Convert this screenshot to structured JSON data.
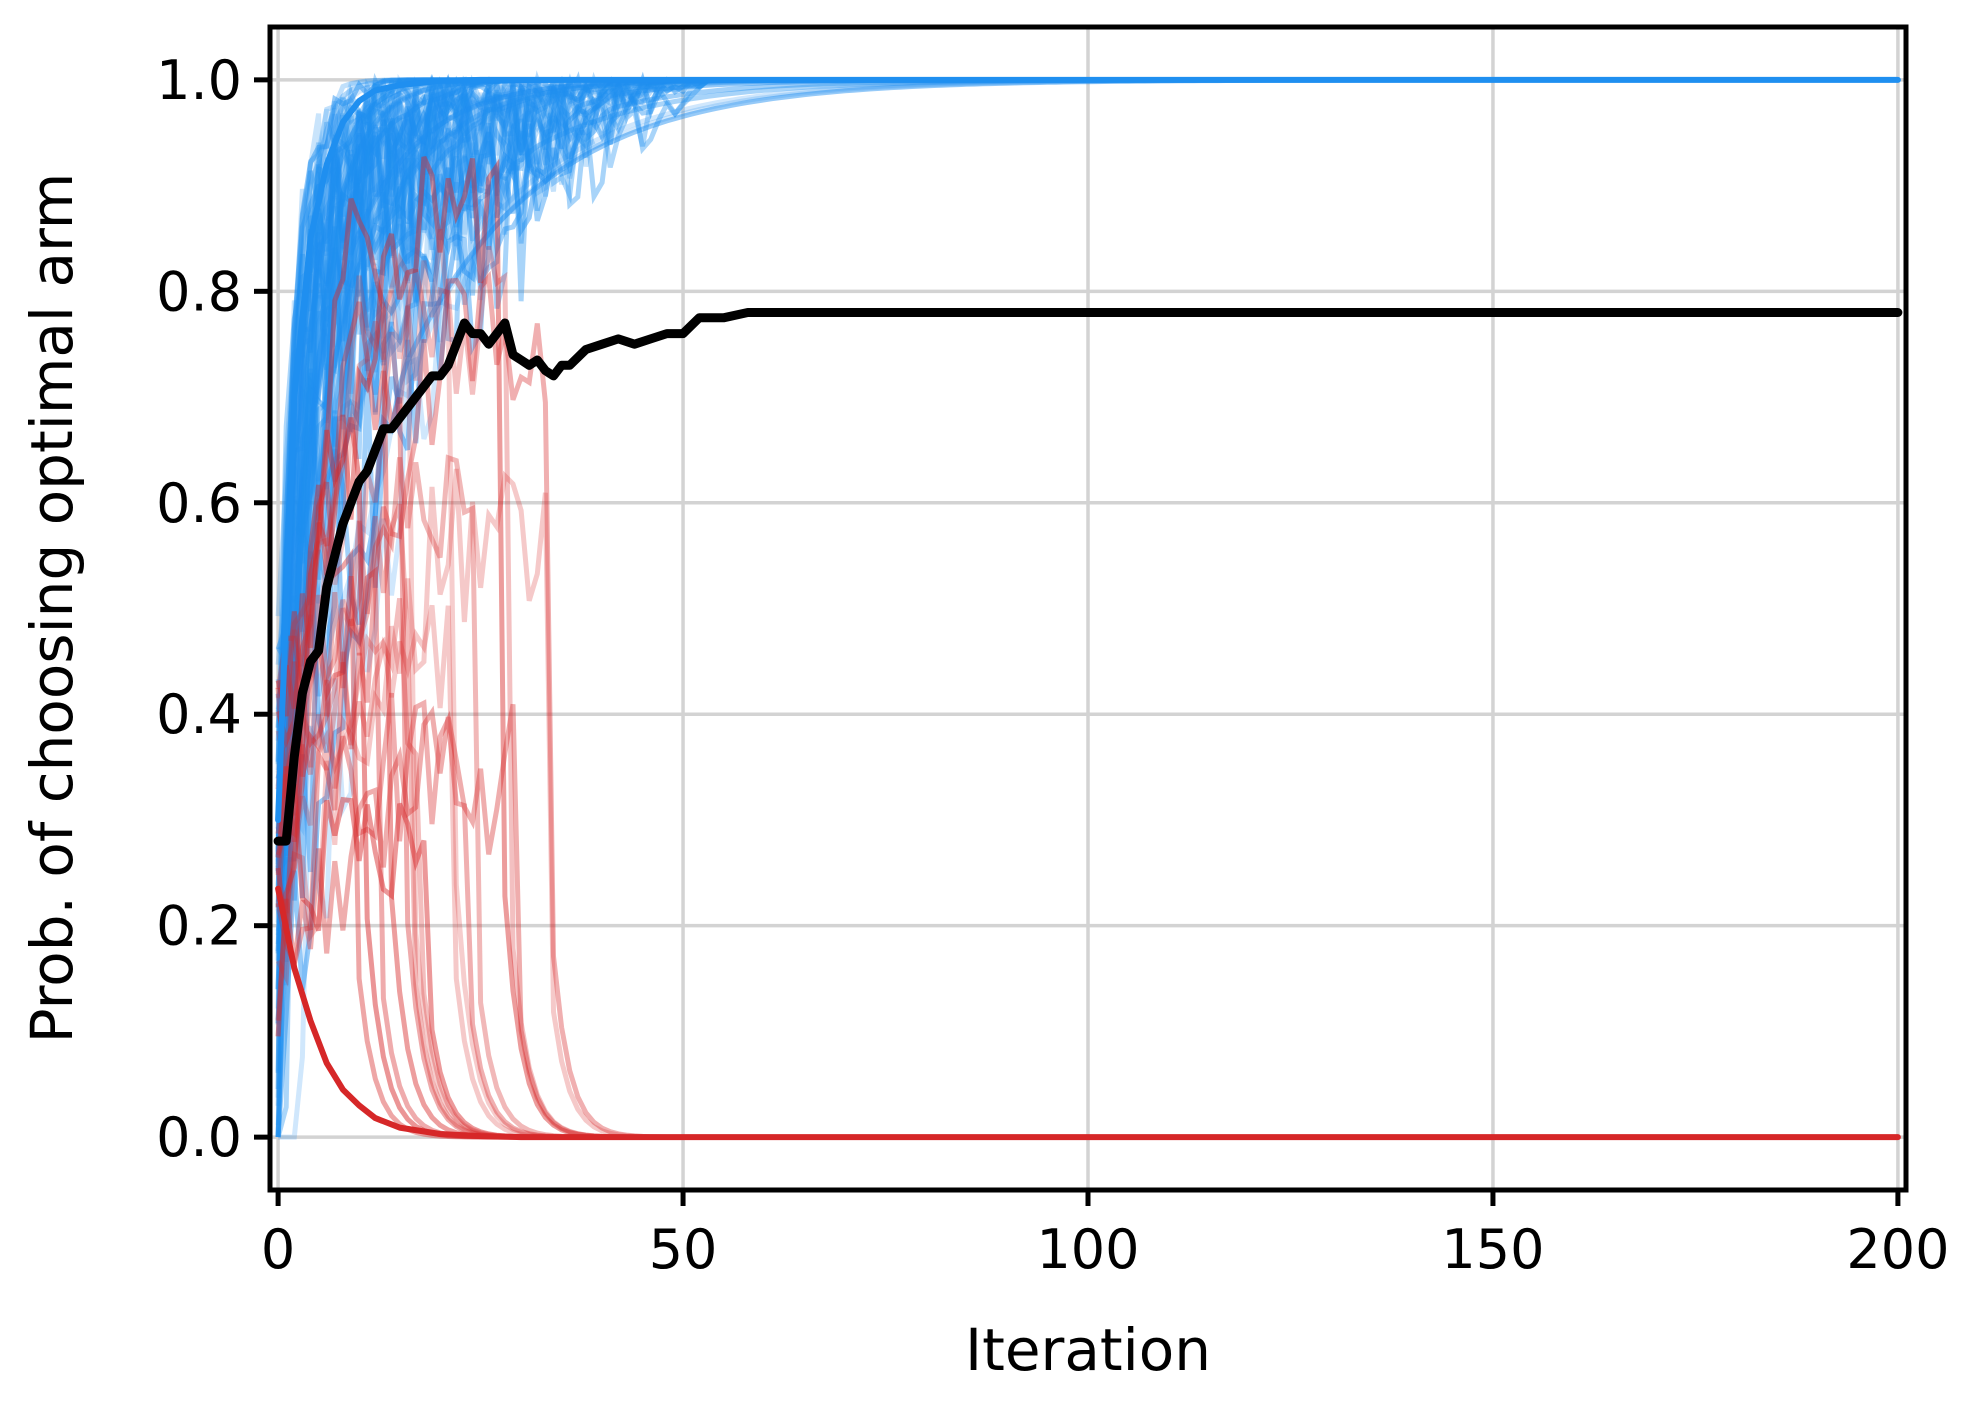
{
  "chart_data": {
    "type": "line",
    "title": "",
    "xlabel": "Iteration",
    "ylabel": "Prob. of choosing optimal arm",
    "xlim": [
      -1,
      201
    ],
    "ylim": [
      -0.05,
      1.05
    ],
    "xticks": [
      0,
      50,
      100,
      150,
      200
    ],
    "xtick_labels": [
      "0",
      "50",
      "100",
      "150",
      "200"
    ],
    "yticks": [
      0.0,
      0.2,
      0.4,
      0.6,
      0.8,
      1.0
    ],
    "ytick_labels": [
      "0.0",
      "0.2",
      "0.4",
      "0.6",
      "0.8",
      "1.0"
    ],
    "grid": true,
    "legend": "none",
    "colors": {
      "converged_runs": "#1f8ff0",
      "failed_runs": "#d62728",
      "mean": "#000000",
      "grid": "#d3d3d3"
    },
    "series": [
      {
        "role": "upper-envelope",
        "color": "#1f8ff0",
        "x": [
          0,
          2,
          4,
          6,
          8,
          10,
          12,
          15,
          20,
          25,
          30,
          40,
          50,
          100,
          150,
          200
        ],
        "y": [
          0.3,
          0.7,
          0.85,
          0.92,
          0.96,
          0.98,
          0.99,
          0.995,
          0.999,
          1.0,
          1.0,
          1.0,
          1.0,
          1.0,
          1.0,
          1.0
        ]
      },
      {
        "role": "lower-envelope",
        "color": "#d62728",
        "x": [
          0,
          2,
          4,
          6,
          8,
          10,
          12,
          15,
          20,
          25,
          30,
          40,
          50,
          100,
          150,
          200
        ],
        "y": [
          0.235,
          0.16,
          0.11,
          0.07,
          0.045,
          0.03,
          0.018,
          0.009,
          0.003,
          0.001,
          0.0,
          0.0,
          0.0,
          0.0,
          0.0,
          0.0
        ]
      },
      {
        "role": "mean",
        "color": "#000000",
        "x": [
          0,
          1,
          2,
          3,
          4,
          5,
          6,
          7,
          8,
          9,
          10,
          11,
          12,
          13,
          14,
          15,
          16,
          17,
          18,
          19,
          20,
          21,
          22,
          23,
          24,
          25,
          26,
          27,
          28,
          29,
          30,
          31,
          32,
          33,
          34,
          35,
          36,
          38,
          40,
          42,
          44,
          46,
          48,
          50,
          52,
          55,
          58,
          60,
          70,
          80,
          100,
          150,
          200
        ],
        "y": [
          0.28,
          0.28,
          0.36,
          0.42,
          0.45,
          0.46,
          0.52,
          0.55,
          0.58,
          0.6,
          0.62,
          0.63,
          0.65,
          0.67,
          0.67,
          0.68,
          0.69,
          0.7,
          0.71,
          0.72,
          0.72,
          0.73,
          0.75,
          0.77,
          0.76,
          0.76,
          0.75,
          0.76,
          0.77,
          0.74,
          0.735,
          0.73,
          0.735,
          0.725,
          0.72,
          0.73,
          0.73,
          0.745,
          0.75,
          0.755,
          0.75,
          0.755,
          0.76,
          0.76,
          0.775,
          0.775,
          0.78,
          0.78,
          0.78,
          0.78,
          0.78,
          0.78,
          0.78
        ]
      }
    ]
  }
}
